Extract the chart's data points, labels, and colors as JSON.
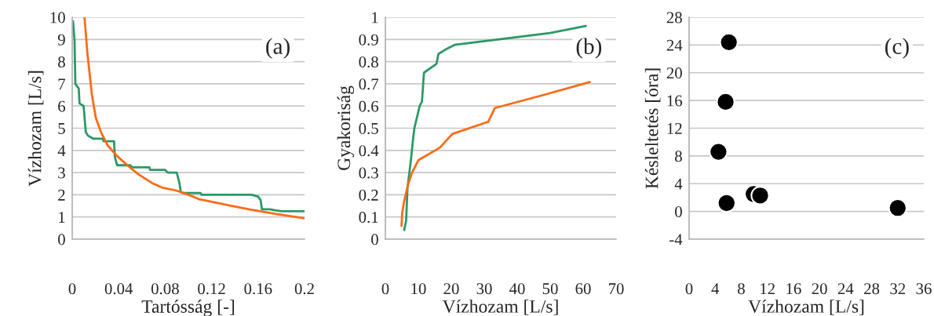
{
  "chart_data": [
    {
      "type": "line",
      "xlabel": "Tartósság [-]",
      "ylabel": "Vízhozam [L/s]",
      "annotations": [
        "(a)"
      ],
      "xlim": [
        0,
        0.2
      ],
      "xticks": [
        0,
        0.04,
        0.08,
        0.12,
        0.16,
        0.2
      ],
      "ylim": [
        0,
        10
      ],
      "yticks": [
        0,
        1,
        2,
        3,
        4,
        5,
        6,
        7,
        8,
        9,
        10
      ],
      "grid": "y",
      "series": [
        {
          "color": "#2a9966",
          "x": [
            0.0007,
            0.002,
            0.0027,
            0.0056,
            0.0063,
            0.0098,
            0.0117,
            0.0135,
            0.018,
            0.0263,
            0.027,
            0.036,
            0.0367,
            0.0387,
            0.05,
            0.0516,
            0.0665,
            0.067,
            0.08,
            0.0822,
            0.09,
            0.0923,
            0.0935,
            0.0955,
            0.1104,
            0.1115,
            0.1543,
            0.16,
            0.1622,
            0.1633,
            0.17,
            0.1745,
            0.18,
            0.2
          ],
          "values": [
            9.82,
            9.0,
            7.0,
            6.79,
            6.12,
            6.0,
            4.82,
            4.67,
            4.53,
            4.53,
            4.41,
            4.41,
            3.71,
            3.33,
            3.33,
            3.24,
            3.24,
            3.12,
            3.12,
            3.0,
            3.0,
            2.53,
            2.12,
            2.08,
            2.08,
            2.0,
            2.0,
            1.92,
            1.76,
            1.35,
            1.35,
            1.3,
            1.26,
            1.26
          ]
        },
        {
          "color": "#ff6a13",
          "x": [
            0.0106,
            0.013,
            0.0169,
            0.0203,
            0.0248,
            0.0304,
            0.0383,
            0.0495,
            0.0574,
            0.0687,
            0.0777,
            0.089,
            0.1002,
            0.1092,
            0.118,
            0.134,
            0.152,
            0.1745,
            0.2
          ],
          "values": [
            10,
            8.41,
            6.53,
            5.47,
            4.82,
            4.24,
            3.76,
            3.24,
            2.91,
            2.53,
            2.32,
            2.2,
            2.0,
            1.8,
            1.71,
            1.53,
            1.35,
            1.14,
            0.94
          ]
        }
      ]
    },
    {
      "type": "line",
      "xlabel": "Vízhozam [L/s]",
      "ylabel": "Gyakoriság",
      "annotations": [
        "(b)"
      ],
      "xlim": [
        0,
        70
      ],
      "xticks": [
        0,
        10,
        20,
        30,
        40,
        50,
        60,
        70
      ],
      "ylim": [
        0,
        1
      ],
      "yticks": [
        0,
        0.1,
        0.2,
        0.3,
        0.4,
        0.5,
        0.6,
        0.7,
        0.8,
        0.9,
        1
      ],
      "grid": "y",
      "series": [
        {
          "color": "#2a9966",
          "x": [
            5.7,
            6.3,
            6.7,
            7.7,
            8.4,
            8.8,
            10.4,
            11.1,
            11.7,
            15.5,
            16.1,
            18.1,
            21.1,
            45.1,
            49.9,
            60.8
          ],
          "values": [
            0.041,
            0.082,
            0.23,
            0.35,
            0.45,
            0.5,
            0.6,
            0.62,
            0.75,
            0.79,
            0.835,
            0.853,
            0.876,
            0.92,
            0.929,
            0.961
          ]
        },
        {
          "color": "#ff6a13",
          "x": [
            4.9,
            5.1,
            5.7,
            6.9,
            8.1,
            10.0,
            16.5,
            20.3,
            31.2,
            33.2,
            48.3,
            62.0
          ],
          "values": [
            0.059,
            0.118,
            0.171,
            0.247,
            0.3,
            0.356,
            0.412,
            0.474,
            0.529,
            0.591,
            0.651,
            0.708
          ]
        }
      ]
    },
    {
      "type": "scatter",
      "xlabel": "Vízhozam [L/s]",
      "ylabel": "Késleltetés [óra]",
      "annotations": [
        "(c)"
      ],
      "xlim": [
        0,
        36
      ],
      "xticks": [
        0,
        4,
        8,
        12,
        16,
        20,
        24,
        28,
        32,
        36
      ],
      "ylim": [
        -4,
        28
      ],
      "yticks": [
        -4,
        0,
        4,
        8,
        12,
        16,
        20,
        24,
        28
      ],
      "grid": "y",
      "marker": "circle",
      "series": [
        {
          "color": "#000000",
          "x": [
            6.1,
            5.6,
            4.5,
            5.75,
            9.9,
            10.9,
            32.0
          ],
          "values": [
            24.4,
            15.8,
            8.6,
            1.2,
            2.5,
            2.3,
            0.5
          ]
        }
      ]
    }
  ]
}
